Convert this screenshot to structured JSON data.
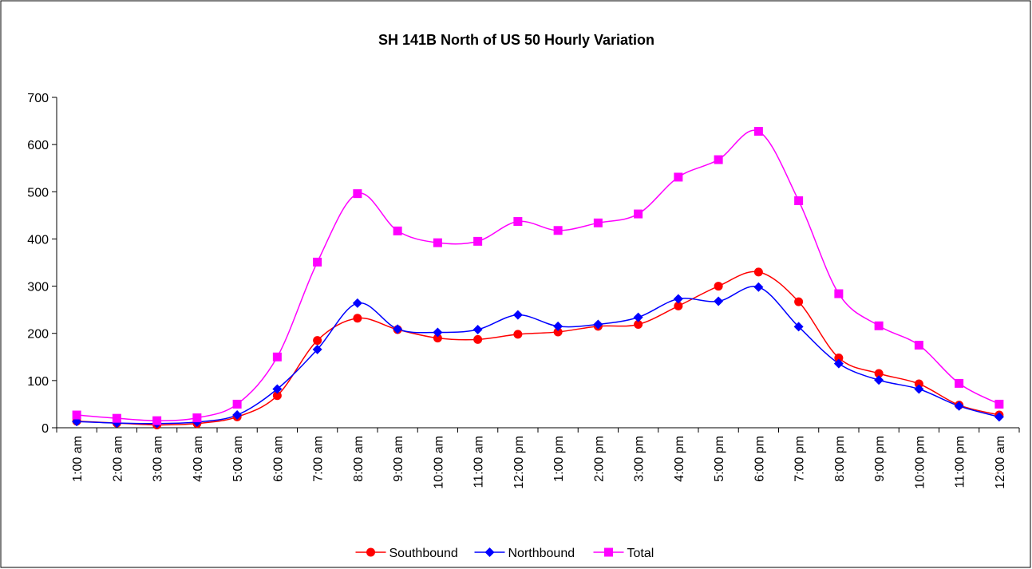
{
  "chart_data": {
    "type": "line",
    "title": "SH 141B North of US 50 Hourly Variation",
    "categories": [
      "1:00 am",
      "2:00 am",
      "3:00 am",
      "4:00 am",
      "5:00 am",
      "6:00 am",
      "7:00 am",
      "8:00 am",
      "9:00 am",
      "10:00 am",
      "11:00 am",
      "12:00 pm",
      "1:00 pm",
      "2:00 pm",
      "3:00 pm",
      "4:00 pm",
      "5:00 pm",
      "6:00 pm",
      "7:00 pm",
      "8:00 pm",
      "9:00 pm",
      "10:00 pm",
      "11:00 pm",
      "12:00 am"
    ],
    "series": [
      {
        "name": "Southbound",
        "color": "#ff0000",
        "marker": "circle",
        "values": [
          14,
          10,
          6,
          9,
          23,
          68,
          185,
          232,
          208,
          190,
          187,
          198,
          203,
          215,
          219,
          258,
          300,
          330,
          267,
          148,
          115,
          93,
          48,
          27
        ]
      },
      {
        "name": "Northbound",
        "color": "#0000ff",
        "marker": "diamond",
        "values": [
          13,
          10,
          9,
          12,
          27,
          82,
          166,
          264,
          209,
          202,
          208,
          239,
          215,
          219,
          234,
          273,
          268,
          298,
          214,
          136,
          101,
          82,
          46,
          23
        ]
      },
      {
        "name": "Total",
        "color": "#ff00ff",
        "marker": "square",
        "values": [
          27,
          20,
          15,
          21,
          50,
          150,
          351,
          496,
          417,
          392,
          395,
          437,
          418,
          434,
          453,
          531,
          568,
          628,
          481,
          284,
          216,
          175,
          94,
          50
        ]
      }
    ],
    "ylim": [
      0,
      700
    ],
    "yticks": [
      0,
      100,
      200,
      300,
      400,
      500,
      600,
      700
    ],
    "smooth": true,
    "legend": "bottom"
  }
}
